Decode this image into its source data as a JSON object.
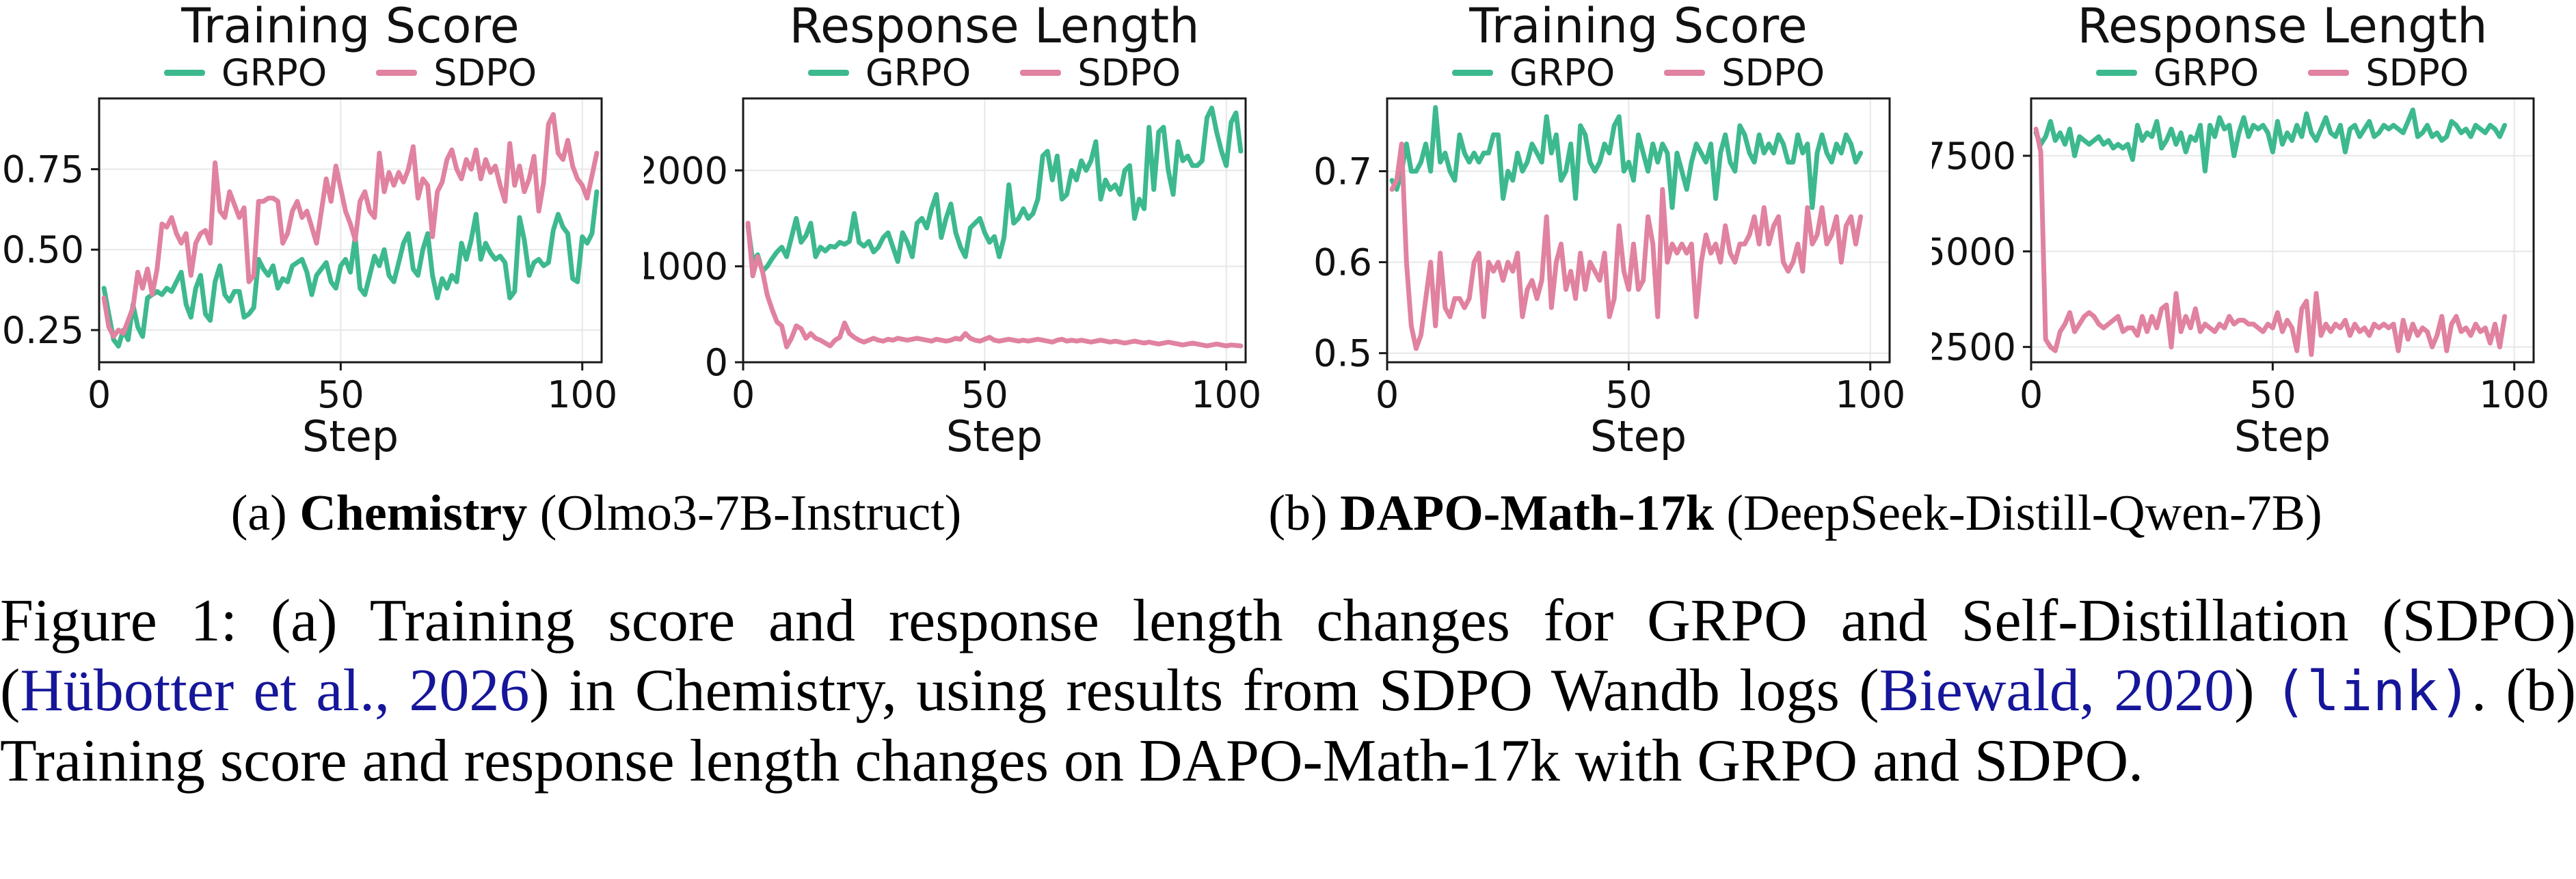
{
  "colors": {
    "grpo": "#3db98e",
    "sdpo": "#e082a0",
    "link": "#16169a",
    "grid": "#e7e7e7",
    "axis": "#1a1a1a"
  },
  "legend": {
    "grpo": "GRPO",
    "sdpo": "SDPO"
  },
  "figure": {
    "subcaptions": {
      "a": {
        "prefix": "(a) ",
        "dataset": "Chemistry",
        "suffix": " (Olmo3-7B-Instruct)"
      },
      "b": {
        "prefix": "(b) ",
        "dataset": "DAPO-Math-17k",
        "suffix": " (DeepSeek-Distill-Qwen-7B)"
      }
    },
    "caption_segments": [
      {
        "style": "normal",
        "text": "Figure 1: (a) Training score and response length changes for GRPO and Self-Distillation (SDPO) ("
      },
      {
        "style": "link",
        "text": "Hübotter et al., 2026"
      },
      {
        "style": "normal",
        "text": ") in Chemistry, using results from SDPO Wandb logs ("
      },
      {
        "style": "link",
        "text": "Biewald, 2020"
      },
      {
        "style": "normal",
        "text": ") "
      },
      {
        "style": "mono-link",
        "text": "(link)"
      },
      {
        "style": "normal",
        "text": ". (b) Training score and response length changes on DAPO-Math-17k with GRPO and SDPO."
      }
    ]
  },
  "chart_data": [
    {
      "type": "line",
      "title": "Training Score",
      "xlabel": "Step",
      "xlim": [
        0,
        104
      ],
      "xticks": [
        0,
        50,
        100
      ],
      "ylim": [
        0.15,
        0.97
      ],
      "yticks": [
        0.25,
        0.5,
        0.75
      ],
      "ytick_labels": [
        "0.25",
        "0.50",
        "0.75"
      ],
      "grid": true,
      "legend_position": "top",
      "x_start": 1,
      "series": [
        {
          "name": "GRPO",
          "color": "#3db98e",
          "values": [
            0.38,
            0.3,
            0.22,
            0.2,
            0.25,
            0.22,
            0.33,
            0.26,
            0.23,
            0.35,
            0.36,
            0.37,
            0.36,
            0.38,
            0.37,
            0.4,
            0.43,
            0.33,
            0.29,
            0.38,
            0.42,
            0.3,
            0.28,
            0.4,
            0.45,
            0.36,
            0.34,
            0.37,
            0.37,
            0.29,
            0.3,
            0.32,
            0.47,
            0.44,
            0.42,
            0.45,
            0.38,
            0.41,
            0.4,
            0.45,
            0.46,
            0.47,
            0.43,
            0.36,
            0.42,
            0.44,
            0.46,
            0.4,
            0.38,
            0.45,
            0.47,
            0.43,
            0.54,
            0.38,
            0.36,
            0.42,
            0.48,
            0.45,
            0.5,
            0.42,
            0.4,
            0.46,
            0.52,
            0.55,
            0.44,
            0.42,
            0.5,
            0.55,
            0.42,
            0.35,
            0.41,
            0.38,
            0.42,
            0.4,
            0.52,
            0.47,
            0.53,
            0.61,
            0.47,
            0.52,
            0.49,
            0.47,
            0.48,
            0.46,
            0.35,
            0.37,
            0.6,
            0.53,
            0.42,
            0.46,
            0.47,
            0.45,
            0.46,
            0.56,
            0.61,
            0.57,
            0.55,
            0.41,
            0.4,
            0.54,
            0.52,
            0.55,
            0.68
          ]
        },
        {
          "name": "SDPO",
          "color": "#e082a0",
          "values": [
            0.35,
            0.26,
            0.23,
            0.25,
            0.24,
            0.28,
            0.32,
            0.43,
            0.38,
            0.44,
            0.36,
            0.44,
            0.58,
            0.57,
            0.6,
            0.55,
            0.52,
            0.55,
            0.42,
            0.52,
            0.55,
            0.56,
            0.52,
            0.77,
            0.62,
            0.6,
            0.68,
            0.64,
            0.6,
            0.63,
            0.4,
            0.42,
            0.65,
            0.65,
            0.66,
            0.66,
            0.65,
            0.52,
            0.55,
            0.62,
            0.65,
            0.6,
            0.62,
            0.57,
            0.52,
            0.62,
            0.72,
            0.65,
            0.76,
            0.69,
            0.62,
            0.58,
            0.53,
            0.65,
            0.68,
            0.62,
            0.6,
            0.8,
            0.68,
            0.74,
            0.7,
            0.74,
            0.71,
            0.75,
            0.82,
            0.66,
            0.72,
            0.7,
            0.54,
            0.68,
            0.71,
            0.78,
            0.81,
            0.75,
            0.72,
            0.78,
            0.75,
            0.81,
            0.72,
            0.78,
            0.74,
            0.76,
            0.7,
            0.65,
            0.83,
            0.7,
            0.76,
            0.68,
            0.72,
            0.79,
            0.62,
            0.71,
            0.89,
            0.92,
            0.8,
            0.78,
            0.84,
            0.76,
            0.72,
            0.7,
            0.66,
            0.73,
            0.8
          ]
        }
      ]
    },
    {
      "type": "line",
      "title": "Response Length",
      "xlabel": "Step",
      "xlim": [
        0,
        104
      ],
      "xticks": [
        0,
        50,
        100
      ],
      "ylim": [
        0,
        2750
      ],
      "yticks": [
        0,
        1000,
        2000
      ],
      "ytick_labels": [
        "0",
        "1000",
        "2000"
      ],
      "grid": true,
      "legend_position": "top",
      "x_start": 1,
      "series": [
        {
          "name": "GRPO",
          "color": "#3db98e",
          "values": [
            1420,
            1050,
            1120,
            950,
            1000,
            1080,
            1150,
            1200,
            1100,
            1300,
            1500,
            1250,
            1320,
            1450,
            1100,
            1200,
            1160,
            1210,
            1200,
            1250,
            1230,
            1260,
            1550,
            1250,
            1210,
            1260,
            1150,
            1200,
            1300,
            1350,
            1200,
            1050,
            1350,
            1250,
            1100,
            1450,
            1500,
            1400,
            1600,
            1750,
            1300,
            1500,
            1650,
            1350,
            1200,
            1100,
            1400,
            1450,
            1500,
            1350,
            1250,
            1310,
            1100,
            1300,
            1850,
            1450,
            1500,
            1600,
            1500,
            1550,
            1700,
            2150,
            2200,
            1900,
            2150,
            1700,
            1750,
            2000,
            1900,
            2100,
            2000,
            2100,
            2300,
            1700,
            1900,
            1800,
            1850,
            1750,
            2000,
            2050,
            1500,
            1700,
            1600,
            2450,
            1800,
            2400,
            2450,
            2000,
            1750,
            2300,
            2100,
            2150,
            2050,
            2050,
            2100,
            2550,
            2650,
            2400,
            2200,
            2050,
            2500,
            2600,
            2200
          ]
        },
        {
          "name": "SDPO",
          "color": "#e082a0",
          "values": [
            1450,
            900,
            1100,
            950,
            700,
            550,
            420,
            380,
            160,
            250,
            380,
            350,
            250,
            300,
            250,
            230,
            200,
            170,
            230,
            260,
            410,
            300,
            260,
            230,
            210,
            230,
            250,
            230,
            220,
            240,
            230,
            250,
            240,
            230,
            240,
            250,
            240,
            230,
            220,
            240,
            230,
            220,
            230,
            250,
            240,
            300,
            250,
            230,
            220,
            240,
            260,
            230,
            220,
            230,
            240,
            230,
            220,
            230,
            220,
            230,
            240,
            230,
            220,
            210,
            230,
            240,
            220,
            230,
            220,
            230,
            220,
            210,
            220,
            230,
            220,
            210,
            220,
            210,
            200,
            210,
            220,
            210,
            200,
            210,
            200,
            190,
            200,
            210,
            200,
            190,
            180,
            190,
            200,
            190,
            180,
            170,
            180,
            190,
            180,
            170,
            180,
            175,
            170
          ]
        }
      ]
    },
    {
      "type": "line",
      "title": "Training Score",
      "xlabel": "Step",
      "xlim": [
        0,
        104
      ],
      "xticks": [
        0,
        50,
        100
      ],
      "ylim": [
        0.49,
        0.78
      ],
      "yticks": [
        0.5,
        0.6,
        0.7
      ],
      "ytick_labels": [
        "0.5",
        "0.6",
        "0.7"
      ],
      "grid": true,
      "legend_position": "top",
      "x_start": 1,
      "series": [
        {
          "name": "GRPO",
          "color": "#3db98e",
          "values": [
            0.69,
            0.68,
            0.7,
            0.73,
            0.7,
            0.7,
            0.71,
            0.73,
            0.7,
            0.77,
            0.71,
            0.72,
            0.7,
            0.69,
            0.74,
            0.72,
            0.71,
            0.72,
            0.71,
            0.72,
            0.72,
            0.74,
            0.74,
            0.67,
            0.7,
            0.69,
            0.72,
            0.7,
            0.71,
            0.73,
            0.72,
            0.71,
            0.76,
            0.72,
            0.74,
            0.69,
            0.7,
            0.73,
            0.67,
            0.75,
            0.74,
            0.71,
            0.7,
            0.71,
            0.73,
            0.72,
            0.75,
            0.76,
            0.7,
            0.71,
            0.69,
            0.74,
            0.72,
            0.7,
            0.73,
            0.71,
            0.73,
            0.72,
            0.66,
            0.72,
            0.7,
            0.68,
            0.71,
            0.73,
            0.72,
            0.71,
            0.73,
            0.67,
            0.72,
            0.74,
            0.71,
            0.7,
            0.75,
            0.74,
            0.72,
            0.71,
            0.74,
            0.72,
            0.73,
            0.72,
            0.74,
            0.73,
            0.71,
            0.71,
            0.74,
            0.72,
            0.73,
            0.66,
            0.72,
            0.74,
            0.72,
            0.71,
            0.73,
            0.72,
            0.74,
            0.73,
            0.71,
            0.72
          ]
        },
        {
          "name": "SDPO",
          "color": "#e082a0",
          "values": [
            0.68,
            0.69,
            0.73,
            0.6,
            0.53,
            0.505,
            0.52,
            0.56,
            0.6,
            0.53,
            0.61,
            0.55,
            0.54,
            0.56,
            0.56,
            0.55,
            0.56,
            0.6,
            0.61,
            0.54,
            0.6,
            0.59,
            0.6,
            0.58,
            0.6,
            0.59,
            0.61,
            0.54,
            0.57,
            0.58,
            0.56,
            0.58,
            0.65,
            0.55,
            0.6,
            0.62,
            0.57,
            0.59,
            0.56,
            0.61,
            0.57,
            0.6,
            0.59,
            0.58,
            0.61,
            0.54,
            0.56,
            0.64,
            0.59,
            0.57,
            0.62,
            0.57,
            0.58,
            0.65,
            0.62,
            0.54,
            0.68,
            0.6,
            0.62,
            0.61,
            0.62,
            0.61,
            0.62,
            0.54,
            0.6,
            0.63,
            0.61,
            0.62,
            0.6,
            0.64,
            0.61,
            0.6,
            0.62,
            0.62,
            0.63,
            0.65,
            0.62,
            0.66,
            0.62,
            0.64,
            0.65,
            0.6,
            0.59,
            0.6,
            0.62,
            0.59,
            0.66,
            0.62,
            0.63,
            0.66,
            0.62,
            0.63,
            0.65,
            0.6,
            0.64,
            0.65,
            0.62,
            0.65
          ]
        }
      ]
    },
    {
      "type": "line",
      "title": "Response Length",
      "xlabel": "Step",
      "xlim": [
        0,
        104
      ],
      "xticks": [
        0,
        50,
        100
      ],
      "ylim": [
        2100,
        9000
      ],
      "yticks": [
        2500,
        5000,
        7500
      ],
      "ytick_labels": [
        "2500",
        "5000",
        "7500"
      ],
      "grid": true,
      "legend_position": "top",
      "x_start": 1,
      "series": [
        {
          "name": "GRPO",
          "color": "#3db98e",
          "values": [
            8100,
            7800,
            8000,
            8400,
            7900,
            8100,
            7800,
            8200,
            7500,
            8000,
            7900,
            7800,
            7900,
            8000,
            7800,
            7900,
            7700,
            7800,
            7700,
            7800,
            7400,
            8300,
            7900,
            8100,
            8000,
            8400,
            7700,
            7900,
            8200,
            7800,
            8100,
            7600,
            8000,
            7900,
            8300,
            7100,
            8300,
            8000,
            8500,
            8200,
            8300,
            7500,
            8100,
            8500,
            8000,
            8300,
            8200,
            8300,
            8100,
            7600,
            8400,
            7800,
            8100,
            7900,
            8300,
            8000,
            8600,
            8100,
            7900,
            8200,
            8500,
            8100,
            8000,
            8300,
            7600,
            8200,
            8300,
            8000,
            8200,
            8400,
            8000,
            8100,
            8300,
            8200,
            8300,
            8200,
            8100,
            8400,
            8700,
            8000,
            8100,
            8300,
            8000,
            8100,
            7900,
            8000,
            8400,
            8300,
            8100,
            8200,
            8000,
            8300,
            8200,
            8100,
            8300,
            8200,
            8000,
            8300
          ]
        },
        {
          "name": "SDPO",
          "color": "#e082a0",
          "values": [
            8200,
            7600,
            2700,
            2500,
            2400,
            2900,
            3100,
            3400,
            2900,
            3100,
            3300,
            3400,
            3300,
            3100,
            3000,
            3100,
            3200,
            3300,
            2900,
            3000,
            3000,
            2800,
            3300,
            2900,
            3300,
            3000,
            3500,
            3600,
            2500,
            3900,
            2900,
            3300,
            3000,
            3500,
            2900,
            3100,
            3000,
            2900,
            3100,
            3000,
            3300,
            3100,
            3200,
            3200,
            3100,
            3100,
            3000,
            2900,
            3100,
            3000,
            3400,
            2900,
            3200,
            3000,
            2400,
            3500,
            3700,
            2300,
            3900,
            2800,
            3100,
            2900,
            3100,
            3000,
            3200,
            2800,
            3100,
            2900,
            3000,
            2800,
            3100,
            3000,
            3100,
            3000,
            3100,
            2400,
            3200,
            2700,
            3100,
            2800,
            3000,
            2900,
            2500,
            2800,
            3300,
            2400,
            3100,
            3300,
            2900,
            3000,
            2800,
            3100,
            2900,
            3000,
            2600,
            3100,
            2500,
            3300
          ]
        }
      ]
    }
  ]
}
